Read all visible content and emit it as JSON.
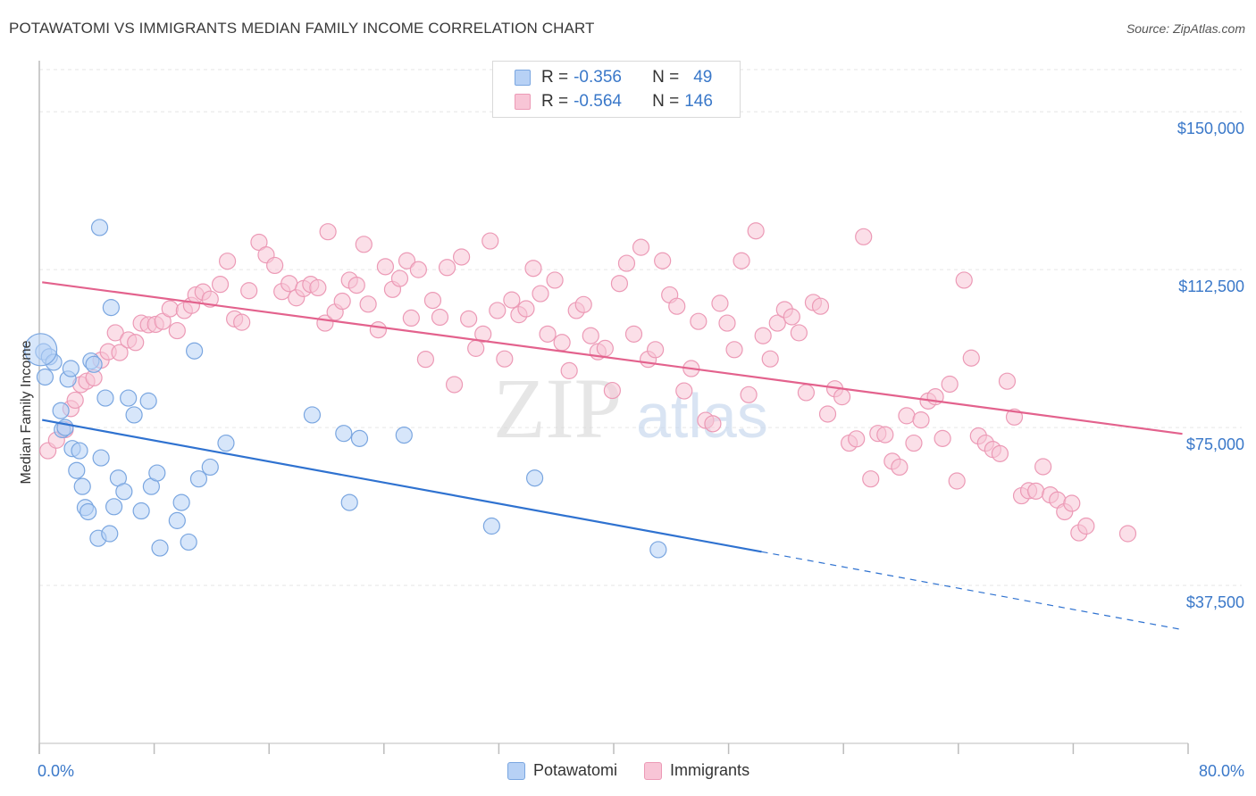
{
  "title": "POTAWATOMI VS IMMIGRANTS MEDIAN FAMILY INCOME CORRELATION CHART",
  "source": "Source: ZipAtlas.com",
  "watermark": {
    "zip": "ZIP",
    "atlas": "atlas"
  },
  "legend": {
    "r_label": "R =",
    "n_label": "N =",
    "rows": [
      {
        "name": "Potawatomi",
        "r": "-0.356",
        "n": "49",
        "fill": "#b7d1f5",
        "stroke": "#7aa6e0",
        "text_color": "#3a78c9"
      },
      {
        "name": "Immigrants",
        "r": "-0.564",
        "n": "146",
        "fill": "#f8c5d6",
        "stroke": "#ec9ab6",
        "text_color": "#3a78c9"
      }
    ]
  },
  "chart_data": {
    "type": "scatter",
    "ylabel": "Median Family Income",
    "xlim": [
      0,
      80
    ],
    "ylim": [
      0,
      160000
    ],
    "x_tick_labels": [
      "0.0%",
      "80.0%"
    ],
    "y_ticks": [
      {
        "value": 37500,
        "label": "$37,500"
      },
      {
        "value": 75000,
        "label": "$75,000"
      },
      {
        "value": 112500,
        "label": "$112,500"
      },
      {
        "value": 150000,
        "label": "$150,000"
      }
    ],
    "grid": true,
    "legend_position": "top-center",
    "series": [
      {
        "name": "Potawatomi",
        "color": "#7aa6e0",
        "fill": "#b7d1f5",
        "line_color": "#2f72d0",
        "trend": {
          "x_start": 0.2,
          "y_start": 76800,
          "x_solid_end": 50.3,
          "y_solid_end": 45500,
          "x_end": 79.6,
          "y_end": 27000
        },
        "points": [
          [
            0.3,
            93000
          ],
          [
            0.4,
            87000
          ],
          [
            0.7,
            91800
          ],
          [
            1.0,
            90500
          ],
          [
            1.6,
            74500
          ],
          [
            1.5,
            79000
          ],
          [
            1.8,
            75000
          ],
          [
            2.0,
            86500
          ],
          [
            2.2,
            89000
          ],
          [
            2.3,
            70000
          ],
          [
            2.6,
            64800
          ],
          [
            2.8,
            69500
          ],
          [
            3.0,
            61000
          ],
          [
            3.2,
            56000
          ],
          [
            3.4,
            55000
          ],
          [
            3.6,
            90800
          ],
          [
            3.8,
            90000
          ],
          [
            4.1,
            48700
          ],
          [
            4.3,
            67800
          ],
          [
            4.6,
            82000
          ],
          [
            4.9,
            49800
          ],
          [
            5.2,
            56200
          ],
          [
            5.5,
            63000
          ],
          [
            5.9,
            59800
          ],
          [
            6.2,
            82000
          ],
          [
            6.6,
            78000
          ],
          [
            7.1,
            55200
          ],
          [
            7.6,
            81300
          ],
          [
            7.8,
            61000
          ],
          [
            8.2,
            64200
          ],
          [
            8.4,
            46400
          ],
          [
            9.6,
            52900
          ],
          [
            9.9,
            57200
          ],
          [
            10.4,
            47800
          ],
          [
            10.8,
            93200
          ],
          [
            11.1,
            62800
          ],
          [
            11.9,
            65600
          ],
          [
            13.0,
            71300
          ],
          [
            4.2,
            122500
          ],
          [
            5.0,
            103500
          ],
          [
            19.0,
            78000
          ],
          [
            21.2,
            73600
          ],
          [
            22.3,
            72400
          ],
          [
            21.6,
            57200
          ],
          [
            25.4,
            73200
          ],
          [
            31.5,
            51600
          ],
          [
            34.5,
            63000
          ],
          [
            43.1,
            46000
          ],
          [
            0.1,
            93500
          ]
        ]
      },
      {
        "name": "Immigrants",
        "color": "#ec9ab6",
        "fill": "#f8c5d6",
        "line_color": "#e3628d",
        "trend": {
          "x_start": 0.2,
          "y_start": 109500,
          "x_end": 79.6,
          "y_end": 73500
        },
        "points": [
          [
            0.6,
            69500
          ],
          [
            1.2,
            72000
          ],
          [
            1.8,
            74500
          ],
          [
            2.2,
            79500
          ],
          [
            2.5,
            81500
          ],
          [
            2.9,
            85200
          ],
          [
            3.3,
            86000
          ],
          [
            3.8,
            86800
          ],
          [
            4.3,
            91000
          ],
          [
            4.8,
            93000
          ],
          [
            5.3,
            97500
          ],
          [
            5.6,
            92800
          ],
          [
            6.2,
            95800
          ],
          [
            6.7,
            95200
          ],
          [
            7.1,
            99800
          ],
          [
            7.6,
            99400
          ],
          [
            8.1,
            99500
          ],
          [
            8.6,
            100200
          ],
          [
            9.1,
            103200
          ],
          [
            9.6,
            98000
          ],
          [
            10.1,
            102800
          ],
          [
            10.6,
            104000
          ],
          [
            10.9,
            106500
          ],
          [
            11.4,
            107200
          ],
          [
            11.9,
            105500
          ],
          [
            12.6,
            109000
          ],
          [
            13.1,
            114500
          ],
          [
            13.6,
            100800
          ],
          [
            14.1,
            100000
          ],
          [
            14.6,
            107500
          ],
          [
            15.3,
            119000
          ],
          [
            15.8,
            116000
          ],
          [
            16.4,
            113500
          ],
          [
            16.9,
            107300
          ],
          [
            17.4,
            109200
          ],
          [
            17.9,
            105800
          ],
          [
            18.4,
            108000
          ],
          [
            18.9,
            109000
          ],
          [
            19.4,
            108200
          ],
          [
            19.9,
            99800
          ],
          [
            20.1,
            121500
          ],
          [
            20.6,
            102400
          ],
          [
            21.1,
            105000
          ],
          [
            21.6,
            110000
          ],
          [
            22.1,
            108800
          ],
          [
            22.6,
            118500
          ],
          [
            22.9,
            104300
          ],
          [
            23.6,
            98200
          ],
          [
            24.1,
            113200
          ],
          [
            24.6,
            107800
          ],
          [
            25.1,
            110400
          ],
          [
            25.6,
            114600
          ],
          [
            25.9,
            101000
          ],
          [
            26.4,
            112500
          ],
          [
            26.9,
            91200
          ],
          [
            27.4,
            105200
          ],
          [
            27.9,
            101200
          ],
          [
            28.4,
            113000
          ],
          [
            28.9,
            85200
          ],
          [
            29.4,
            115500
          ],
          [
            29.9,
            100800
          ],
          [
            30.4,
            93800
          ],
          [
            30.9,
            97200
          ],
          [
            31.4,
            119300
          ],
          [
            31.9,
            102800
          ],
          [
            32.4,
            91300
          ],
          [
            32.9,
            105300
          ],
          [
            33.4,
            101800
          ],
          [
            33.9,
            103200
          ],
          [
            34.4,
            112800
          ],
          [
            34.9,
            106800
          ],
          [
            35.4,
            97200
          ],
          [
            35.9,
            110000
          ],
          [
            36.4,
            95200
          ],
          [
            36.9,
            88500
          ],
          [
            37.4,
            102800
          ],
          [
            37.9,
            104200
          ],
          [
            38.4,
            96800
          ],
          [
            38.9,
            93000
          ],
          [
            39.4,
            93800
          ],
          [
            39.9,
            83800
          ],
          [
            40.4,
            109200
          ],
          [
            40.9,
            114000
          ],
          [
            41.4,
            97200
          ],
          [
            41.9,
            117800
          ],
          [
            42.4,
            91200
          ],
          [
            42.9,
            93500
          ],
          [
            43.4,
            114600
          ],
          [
            43.9,
            106500
          ],
          [
            44.4,
            103800
          ],
          [
            44.9,
            83700
          ],
          [
            45.4,
            89000
          ],
          [
            45.9,
            100200
          ],
          [
            46.4,
            76700
          ],
          [
            46.9,
            75900
          ],
          [
            47.4,
            104500
          ],
          [
            47.9,
            99800
          ],
          [
            48.4,
            93500
          ],
          [
            48.9,
            114600
          ],
          [
            49.4,
            82800
          ],
          [
            49.9,
            121700
          ],
          [
            50.4,
            96800
          ],
          [
            50.9,
            91300
          ],
          [
            51.4,
            99800
          ],
          [
            51.9,
            103000
          ],
          [
            52.4,
            101300
          ],
          [
            52.9,
            97500
          ],
          [
            53.4,
            83300
          ],
          [
            53.9,
            104700
          ],
          [
            54.4,
            103800
          ],
          [
            54.9,
            78200
          ],
          [
            55.4,
            84200
          ],
          [
            55.9,
            82300
          ],
          [
            56.4,
            71300
          ],
          [
            56.9,
            72300
          ],
          [
            57.4,
            120300
          ],
          [
            57.9,
            62800
          ],
          [
            58.4,
            73600
          ],
          [
            58.9,
            73300
          ],
          [
            59.4,
            67000
          ],
          [
            59.9,
            65600
          ],
          [
            60.4,
            77800
          ],
          [
            60.9,
            71300
          ],
          [
            61.4,
            76800
          ],
          [
            61.9,
            81300
          ],
          [
            62.4,
            82300
          ],
          [
            62.9,
            72400
          ],
          [
            63.4,
            85300
          ],
          [
            63.9,
            62300
          ],
          [
            64.4,
            110000
          ],
          [
            64.9,
            91500
          ],
          [
            65.4,
            73000
          ],
          [
            65.9,
            71300
          ],
          [
            66.4,
            69800
          ],
          [
            66.9,
            68800
          ],
          [
            67.4,
            86000
          ],
          [
            67.9,
            77500
          ],
          [
            68.4,
            58800
          ],
          [
            68.9,
            60000
          ],
          [
            69.4,
            59900
          ],
          [
            69.9,
            65700
          ],
          [
            70.4,
            59000
          ],
          [
            70.9,
            57800
          ],
          [
            71.4,
            55000
          ],
          [
            71.9,
            57000
          ],
          [
            72.4,
            50000
          ],
          [
            72.9,
            51600
          ],
          [
            75.8,
            49800
          ]
        ]
      }
    ]
  }
}
